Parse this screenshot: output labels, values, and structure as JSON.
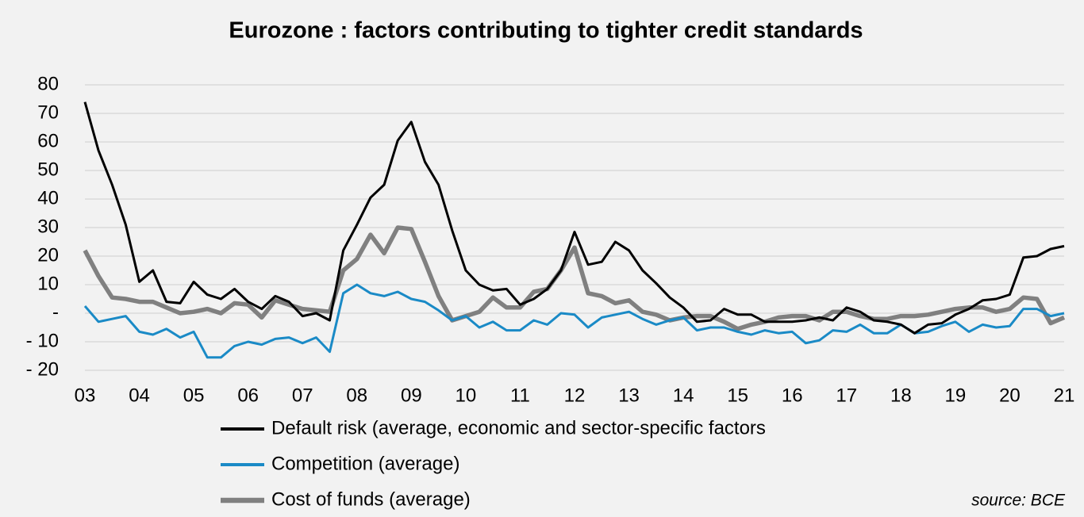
{
  "chart_data": {
    "type": "line",
    "title": "Eurozone : factors contributing to tighter credit standards",
    "source": "source:  BCE",
    "categories": [
      "03",
      null,
      null,
      null,
      "04",
      null,
      null,
      null,
      "05",
      null,
      null,
      null,
      "06",
      null,
      null,
      null,
      "07",
      null,
      null,
      null,
      "08",
      null,
      null,
      null,
      "09",
      null,
      null,
      null,
      "10",
      null,
      null,
      null,
      "11",
      null,
      null,
      null,
      "12",
      null,
      null,
      null,
      "13",
      null,
      null,
      null,
      "14",
      null,
      null,
      null,
      "15",
      null,
      null,
      null,
      "16",
      null,
      null,
      null,
      "17",
      null,
      null,
      null,
      "18",
      null,
      null,
      null,
      "19",
      null,
      null,
      null,
      "20",
      null,
      null,
      null,
      "21"
    ],
    "ylim": [
      -20,
      80
    ],
    "yticks": [
      80,
      70,
      60,
      50,
      40,
      30,
      20,
      10,
      {
        "value": 0,
        "label": "-"
      },
      {
        "value": -10,
        "label": "- 10"
      },
      {
        "value": -20,
        "label": "- 20"
      }
    ],
    "grid": true,
    "series": [
      {
        "name": "Default risk (average, economic and sector-specific factors",
        "color": "#000000",
        "values": [
          74,
          57,
          45,
          31,
          11,
          15,
          4,
          3.5,
          11,
          6.5,
          5,
          8.5,
          4,
          1.5,
          6,
          4,
          -1,
          0,
          -2.5,
          22,
          31,
          40.5,
          45,
          60.5,
          67,
          53,
          45,
          29,
          15,
          10,
          8,
          8.5,
          3,
          5,
          8.5,
          15,
          28.5,
          17,
          18,
          25,
          22,
          15,
          10.5,
          5.5,
          2,
          -3,
          -2.5,
          1.5,
          -0.5,
          -0.5,
          -3,
          -3,
          -3,
          -2.5,
          -1.5,
          -2.5,
          2,
          0.5,
          -2.5,
          -3,
          -4,
          -7,
          -4,
          -3.5,
          -0.5,
          1.5,
          4.5,
          5,
          6.5,
          19.5,
          20,
          22.5,
          23.5
        ]
      },
      {
        "name": "Competition (average)",
        "color": "#1a8ac6",
        "values": [
          2.5,
          -3,
          -2,
          -1,
          -6.5,
          -7.5,
          -5.5,
          -8.5,
          -6.5,
          -15.5,
          -15.5,
          -11.5,
          -10,
          -11,
          -9,
          -8.5,
          -10.5,
          -8.5,
          -13.5,
          7,
          10,
          7,
          6,
          7.5,
          5,
          4,
          1,
          -2.5,
          -1,
          -5,
          -3,
          -6,
          -6,
          -2.5,
          -4,
          0,
          -0.5,
          -5,
          -1.5,
          -0.5,
          0.5,
          -2,
          -4,
          -2.5,
          -1.5,
          -6,
          -5,
          -5,
          -6.5,
          -7.5,
          -6,
          -7,
          -6.5,
          -10.5,
          -9.5,
          -6,
          -6.5,
          -4,
          -7,
          -7,
          -4,
          -7,
          -6.5,
          -4.5,
          -3,
          -6.5,
          -4,
          -5,
          -4.5,
          1.5,
          1.5,
          -1,
          0
        ]
      },
      {
        "name": "Cost of funds (average)",
        "color": "#808080",
        "values": [
          22,
          13,
          5.5,
          5,
          4,
          4,
          2,
          0,
          0.5,
          1.5,
          0,
          3.5,
          3,
          -1.5,
          4.5,
          3,
          1.5,
          1,
          0.5,
          15,
          19,
          27.5,
          21,
          30,
          29.5,
          18,
          6,
          -2.5,
          -1,
          0.5,
          5.5,
          2,
          2,
          7.5,
          8.5,
          15,
          23,
          7,
          6,
          3.5,
          4.5,
          0.5,
          -0.5,
          -2.5,
          -1.5,
          -1,
          -1,
          -3,
          -5.5,
          -4,
          -3,
          -1.5,
          -1,
          -1,
          -2.5,
          0.5,
          0.5,
          -1,
          -2,
          -2,
          -1,
          -1,
          -0.5,
          0.5,
          1.5,
          2,
          2,
          0.5,
          1.5,
          5.5,
          5,
          -3.5,
          -1.5
        ]
      }
    ]
  }
}
